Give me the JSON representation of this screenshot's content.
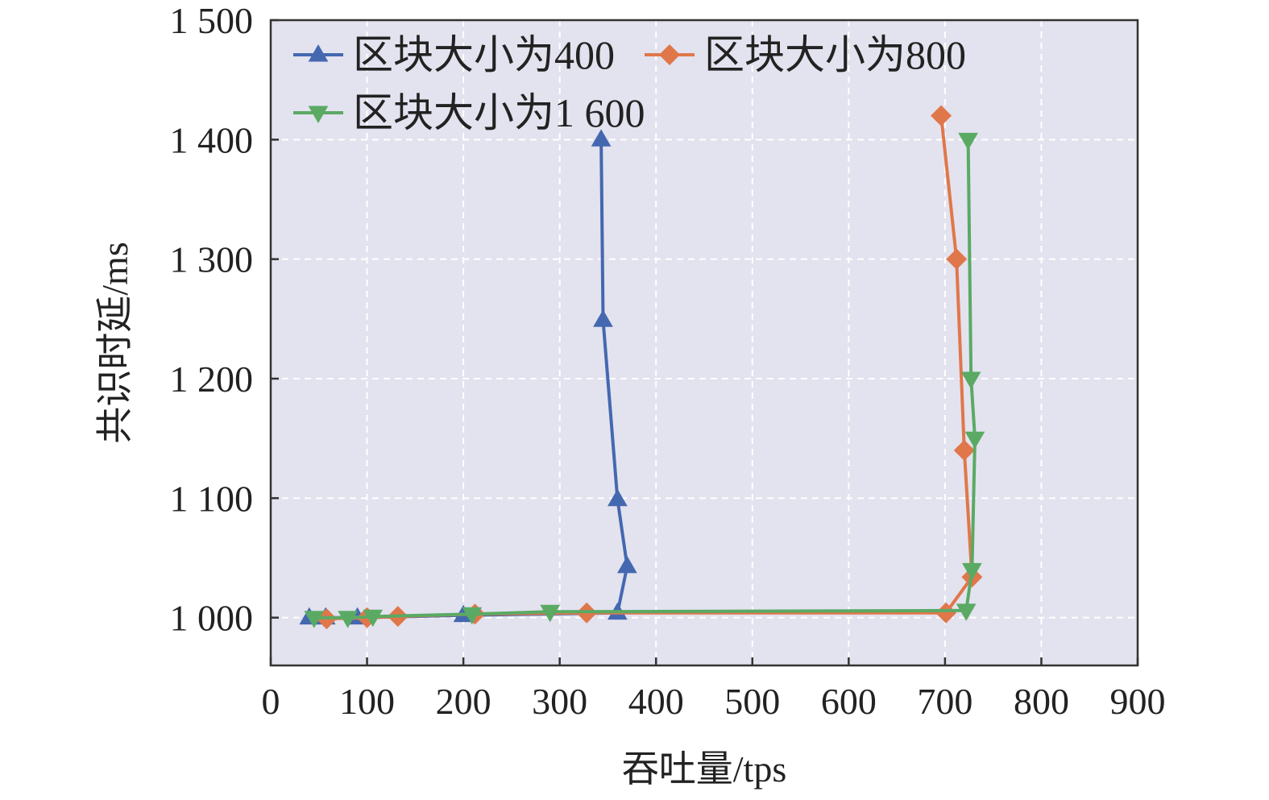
{
  "chart_data": {
    "type": "line",
    "xlabel": "吞吐量/tps",
    "ylabel": "共识时延/ms",
    "xlim": [
      0,
      900
    ],
    "ylim": [
      960,
      1500
    ],
    "x_ticks": [
      0,
      100,
      200,
      300,
      400,
      500,
      600,
      700,
      800,
      900
    ],
    "x_tick_labels": [
      "0",
      "100",
      "200",
      "300",
      "400",
      "500",
      "600",
      "700",
      "800",
      "900"
    ],
    "y_ticks": [
      1000,
      1100,
      1200,
      1300,
      1400,
      1500
    ],
    "y_tick_labels": [
      "1 000",
      "1 100",
      "1 200",
      "1 300",
      "1 400",
      "1 500"
    ],
    "grid": true,
    "background": "#e3e2ef",
    "legend_position": "top-left",
    "series": [
      {
        "name": "区块大小为400",
        "color": "#4468b0",
        "marker": "triangle-up",
        "x": [
          40,
          57,
          90,
          200,
          360,
          370,
          360,
          345,
          343
        ],
        "y": [
          1000,
          1000,
          1000,
          1002,
          1004,
          1043,
          1099,
          1249,
          1400
        ]
      },
      {
        "name": "区块大小为800",
        "color": "#e0774a",
        "marker": "diamond",
        "x": [
          58,
          100,
          132,
          212,
          328,
          701,
          728,
          720,
          712,
          696
        ],
        "y": [
          999,
          1000,
          1001,
          1003,
          1004,
          1004,
          1034,
          1140,
          1300,
          1420
        ]
      },
      {
        "name": "区块大小为1 600",
        "color": "#5aaa64",
        "marker": "triangle-down",
        "x": [
          45,
          80,
          106,
          209,
          290,
          722,
          728,
          731,
          727,
          724
        ],
        "y": [
          1000,
          1000,
          1001,
          1003,
          1005,
          1006,
          1040,
          1150,
          1200,
          1400
        ]
      }
    ]
  }
}
